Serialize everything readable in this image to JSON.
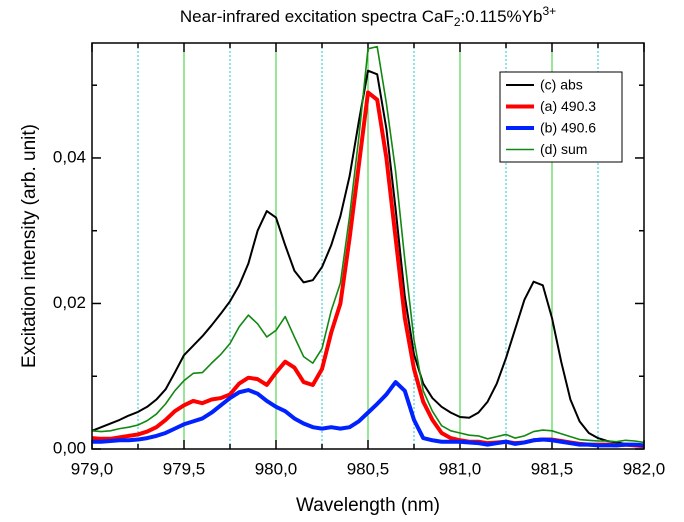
{
  "chart_data": {
    "type": "line",
    "title": [
      "Near-infrared excitation spectra CaF",
      "2",
      ":0.115%Yb",
      "3+"
    ],
    "xlabel": "Wavelength (nm)",
    "ylabel": "Excitation intensity (arb. unit)",
    "xlim": [
      979.0,
      982.0
    ],
    "ylim": [
      0,
      0.0558
    ],
    "xticks": [
      {
        "value": 979.0,
        "label": "979,0"
      },
      {
        "value": 979.5,
        "label": "979,5"
      },
      {
        "value": 980.0,
        "label": "980,0"
      },
      {
        "value": 980.5,
        "label": "980,5"
      },
      {
        "value": 981.0,
        "label": "981,0"
      },
      {
        "value": 981.5,
        "label": "981,5"
      },
      {
        "value": 982.0,
        "label": "982,0"
      }
    ],
    "xminorticks": [
      979.25,
      979.75,
      980.25,
      980.75,
      981.25,
      981.75
    ],
    "yticks": [
      {
        "value": 0,
        "label": "0,00"
      },
      {
        "value": 0.02,
        "label": "0,02"
      },
      {
        "value": 0.04,
        "label": "0,04"
      }
    ],
    "yminorticks": [
      0.01,
      0.03,
      0.05
    ],
    "grid": {
      "major_color": "#33cc33",
      "minor_color": "#22c8d8"
    },
    "legend": "upper right",
    "x": [
      979.0,
      979.05,
      979.1,
      979.15,
      979.2,
      979.25,
      979.3,
      979.35,
      979.4,
      979.45,
      979.5,
      979.55,
      979.6,
      979.65,
      979.7,
      979.75,
      979.8,
      979.85,
      979.9,
      979.95,
      980.0,
      980.05,
      980.1,
      980.15,
      980.2,
      980.25,
      980.3,
      980.35,
      980.4,
      980.45,
      980.5,
      980.55,
      980.6,
      980.65,
      980.7,
      980.75,
      980.8,
      980.85,
      980.9,
      980.95,
      981.0,
      981.05,
      981.1,
      981.15,
      981.2,
      981.25,
      981.3,
      981.35,
      981.4,
      981.45,
      981.5,
      981.55,
      981.6,
      981.65,
      981.7,
      981.75,
      981.8,
      981.85,
      981.9,
      981.95,
      982.0
    ],
    "series": [
      {
        "name": "(c) abs",
        "color": "#000000",
        "line_width": 2,
        "values": [
          0.0025,
          0.003,
          0.0035,
          0.004,
          0.0046,
          0.0051,
          0.0058,
          0.0068,
          0.0082,
          0.0105,
          0.0129,
          0.0142,
          0.0155,
          0.017,
          0.0186,
          0.0203,
          0.0225,
          0.0255,
          0.03,
          0.0327,
          0.0318,
          0.028,
          0.0245,
          0.0229,
          0.0232,
          0.025,
          0.028,
          0.032,
          0.0375,
          0.045,
          0.052,
          0.0515,
          0.044,
          0.033,
          0.021,
          0.013,
          0.009,
          0.007,
          0.0058,
          0.005,
          0.0044,
          0.0043,
          0.005,
          0.0065,
          0.009,
          0.0125,
          0.0165,
          0.0205,
          0.023,
          0.0225,
          0.018,
          0.012,
          0.0068,
          0.0038,
          0.0022,
          0.0015,
          0.0011,
          0.0009,
          0.0007,
          0.0006,
          0.0005
        ]
      },
      {
        "name": "(a) 490.3",
        "color": "#ff0000",
        "line_width": 4,
        "values": [
          0.0015,
          0.0014,
          0.0014,
          0.0016,
          0.0018,
          0.002,
          0.0024,
          0.003,
          0.004,
          0.0052,
          0.006,
          0.0066,
          0.0063,
          0.0068,
          0.007,
          0.0075,
          0.009,
          0.0098,
          0.0096,
          0.0088,
          0.0105,
          0.012,
          0.0112,
          0.0092,
          0.0088,
          0.011,
          0.016,
          0.02,
          0.029,
          0.039,
          0.049,
          0.048,
          0.04,
          0.029,
          0.018,
          0.011,
          0.0065,
          0.004,
          0.0022,
          0.0015,
          0.0012,
          0.001,
          0.001,
          0.0008,
          0.0009,
          0.001,
          0.0008,
          0.0009,
          0.0012,
          0.0013,
          0.0013,
          0.0011,
          0.0009,
          0.0007,
          0.0006,
          0.0006,
          0.0006,
          0.0005,
          0.0006,
          0.0005,
          0.0004
        ]
      },
      {
        "name": "(b) 490.6",
        "color": "#0022ff",
        "line_width": 4,
        "values": [
          0.001,
          0.001,
          0.0011,
          0.0012,
          0.0012,
          0.0013,
          0.0015,
          0.0018,
          0.0022,
          0.0028,
          0.0034,
          0.0038,
          0.0042,
          0.005,
          0.006,
          0.007,
          0.0078,
          0.0081,
          0.0076,
          0.0066,
          0.0058,
          0.0052,
          0.0042,
          0.0035,
          0.003,
          0.0028,
          0.003,
          0.0028,
          0.003,
          0.0038,
          0.005,
          0.0062,
          0.0075,
          0.0092,
          0.008,
          0.004,
          0.0015,
          0.0012,
          0.001,
          0.001,
          0.001,
          0.0009,
          0.0008,
          0.0006,
          0.0008,
          0.001,
          0.0007,
          0.0009,
          0.0012,
          0.0013,
          0.0012,
          0.001,
          0.0008,
          0.0006,
          0.0006,
          0.0005,
          0.0005,
          0.0005,
          0.0006,
          0.0006,
          0.0005
        ]
      },
      {
        "name": "(d) sum",
        "color": "#118811",
        "line_width": 1.6,
        "values": [
          0.0025,
          0.0024,
          0.0025,
          0.0028,
          0.003,
          0.0033,
          0.0039,
          0.0048,
          0.0062,
          0.008,
          0.0094,
          0.0104,
          0.0105,
          0.0118,
          0.013,
          0.0145,
          0.0168,
          0.0184,
          0.0172,
          0.0154,
          0.0163,
          0.0182,
          0.0154,
          0.0127,
          0.0118,
          0.0138,
          0.019,
          0.0228,
          0.032,
          0.0428,
          0.055,
          0.0553,
          0.0475,
          0.0382,
          0.026,
          0.015,
          0.008,
          0.0052,
          0.0032,
          0.0025,
          0.0022,
          0.0019,
          0.0018,
          0.0014,
          0.0017,
          0.002,
          0.0015,
          0.0018,
          0.0024,
          0.0026,
          0.0025,
          0.0021,
          0.0017,
          0.0013,
          0.0012,
          0.0011,
          0.0011,
          0.001,
          0.0012,
          0.0011,
          0.0009
        ]
      }
    ]
  }
}
